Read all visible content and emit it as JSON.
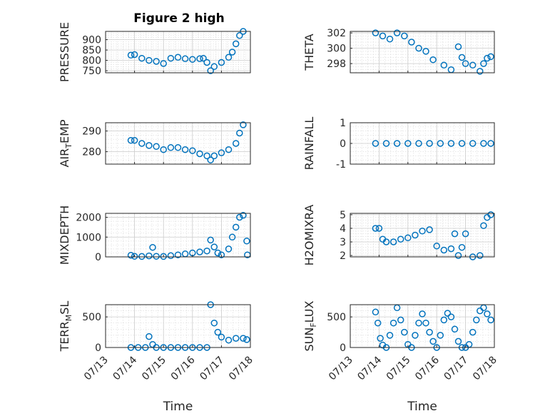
{
  "figure": {
    "title": "Figure 2 high",
    "marker_color": "#0072BD"
  },
  "chart_data": [
    {
      "type": "scatter",
      "title": "Figure 2 high",
      "ylabel": "PRESSURE",
      "ylabel_sub": "",
      "ylabel_after": "",
      "xlabel": "",
      "yticks": [
        750,
        800,
        850,
        900
      ],
      "ylim": [
        740,
        940
      ],
      "xlim": [
        "07/13",
        "07/18"
      ],
      "series": [
        {
          "x": [
            "07/13 21:00",
            "07/14 00:00",
            "07/14 06:00",
            "07/14 12:00",
            "07/14 18:00",
            "07/15 00:00",
            "07/15 06:00",
            "07/15 12:00",
            "07/15 18:00",
            "07/16 00:00",
            "07/16 06:00",
            "07/16 09:00",
            "07/16 12:00",
            "07/16 15:00",
            "07/16 18:00",
            "07/17 00:00",
            "07/17 06:00",
            "07/17 09:00",
            "07/17 12:00",
            "07/17 15:00",
            "07/17 18:00"
          ],
          "y": [
            825,
            828,
            810,
            800,
            795,
            785,
            810,
            815,
            808,
            805,
            808,
            810,
            790,
            750,
            770,
            790,
            815,
            840,
            880,
            920,
            940
          ]
        }
      ]
    },
    {
      "type": "scatter",
      "title": "",
      "ylabel": "THETA",
      "ylabel_sub": "",
      "ylabel_after": "",
      "xlabel": "",
      "yticks": [
        298,
        300,
        302
      ],
      "ylim": [
        296.8,
        302.2
      ],
      "xlim": [
        "07/13",
        "07/18"
      ],
      "series": [
        {
          "x": [
            "07/13 21:00",
            "07/14 03:00",
            "07/14 09:00",
            "07/14 15:00",
            "07/14 21:00",
            "07/15 03:00",
            "07/15 09:00",
            "07/15 15:00",
            "07/15 21:00",
            "07/16 06:00",
            "07/16 12:00",
            "07/16 18:00",
            "07/16 21:00",
            "07/17 00:00",
            "07/17 06:00",
            "07/17 12:00",
            "07/17 15:00",
            "07/17 18:00",
            "07/17 21:00"
          ],
          "y": [
            302,
            301.6,
            301.2,
            302,
            301.6,
            300.8,
            300.0,
            299.6,
            298.5,
            297.8,
            297.2,
            300.2,
            298.8,
            298.0,
            297.8,
            297.0,
            298.0,
            298.7,
            298.9
          ]
        }
      ]
    },
    {
      "type": "scatter",
      "title": "",
      "ylabel": "AIR",
      "ylabel_sub": "T",
      "ylabel_after": "EMP",
      "xlabel": "",
      "yticks": [
        280,
        290
      ],
      "ylim": [
        274,
        294
      ],
      "xlim": [
        "07/13",
        "07/18"
      ],
      "series": [
        {
          "x": [
            "07/13 21:00",
            "07/14 00:00",
            "07/14 06:00",
            "07/14 12:00",
            "07/14 18:00",
            "07/15 00:00",
            "07/15 06:00",
            "07/15 12:00",
            "07/15 18:00",
            "07/16 00:00",
            "07/16 06:00",
            "07/16 12:00",
            "07/16 15:00",
            "07/16 18:00",
            "07/17 00:00",
            "07/17 06:00",
            "07/17 12:00",
            "07/17 15:00",
            "07/17 18:00"
          ],
          "y": [
            285.5,
            285.5,
            284,
            283,
            282.5,
            281,
            282,
            282,
            281,
            280.5,
            279,
            278,
            276,
            278,
            279.5,
            281,
            284,
            289,
            293
          ]
        }
      ]
    },
    {
      "type": "scatter",
      "title": "",
      "ylabel": "RAINFALL",
      "ylabel_sub": "",
      "ylabel_after": "",
      "xlabel": "",
      "yticks": [
        -1,
        0,
        1
      ],
      "ylim": [
        -1,
        1
      ],
      "xlim": [
        "07/13",
        "07/18"
      ],
      "series": [
        {
          "x": [
            "07/13 21:00",
            "07/14 06:00",
            "07/14 15:00",
            "07/15 00:00",
            "07/15 09:00",
            "07/15 18:00",
            "07/16 03:00",
            "07/16 12:00",
            "07/16 21:00",
            "07/17 06:00",
            "07/17 15:00",
            "07/17 21:00"
          ],
          "y": [
            0,
            0,
            0,
            0,
            0,
            0,
            0,
            0,
            0,
            0,
            0,
            0
          ]
        }
      ]
    },
    {
      "type": "scatter",
      "title": "",
      "ylabel": "MIXDEPTH",
      "ylabel_sub": "",
      "ylabel_after": "",
      "xlabel": "",
      "yticks": [
        0,
        1000,
        2000
      ],
      "ylim": [
        0,
        2200
      ],
      "xlim": [
        "07/13",
        "07/18"
      ],
      "series": [
        {
          "x": [
            "07/13 21:00",
            "07/14 00:00",
            "07/14 06:00",
            "07/14 12:00",
            "07/14 15:00",
            "07/14 18:00",
            "07/15 00:00",
            "07/15 06:00",
            "07/15 12:00",
            "07/15 18:00",
            "07/16 00:00",
            "07/16 06:00",
            "07/16 12:00",
            "07/16 15:00",
            "07/16 18:00",
            "07/16 21:00",
            "07/17 00:00",
            "07/17 06:00",
            "07/17 09:00",
            "07/17 12:00",
            "07/17 15:00",
            "07/17 18:00",
            "07/17 21:00",
            "07/17 21:30"
          ],
          "y": [
            80,
            30,
            20,
            50,
            480,
            30,
            20,
            60,
            100,
            150,
            200,
            250,
            300,
            850,
            500,
            200,
            100,
            400,
            1000,
            1500,
            2000,
            2100,
            800,
            100
          ]
        }
      ]
    },
    {
      "type": "scatter",
      "title": "",
      "ylabel": "H2OMIXRA",
      "ylabel_sub": "",
      "ylabel_after": "",
      "xlabel": "",
      "yticks": [
        2,
        3,
        4,
        5
      ],
      "ylim": [
        1.9,
        5.1
      ],
      "xlim": [
        "07/13",
        "07/18"
      ],
      "series": [
        {
          "x": [
            "07/13 21:00",
            "07/14 00:00",
            "07/14 03:00",
            "07/14 06:00",
            "07/14 12:00",
            "07/14 18:00",
            "07/15 00:00",
            "07/15 06:00",
            "07/15 12:00",
            "07/15 18:00",
            "07/16 00:00",
            "07/16 06:00",
            "07/16 12:00",
            "07/16 15:00",
            "07/16 18:00",
            "07/16 21:00",
            "07/17 00:00",
            "07/17 06:00",
            "07/17 12:00",
            "07/17 15:00",
            "07/17 18:00",
            "07/17 21:00"
          ],
          "y": [
            4.0,
            4.0,
            3.2,
            3.0,
            3.0,
            3.2,
            3.3,
            3.5,
            3.8,
            3.9,
            2.7,
            2.4,
            2.5,
            3.6,
            2.0,
            2.6,
            3.6,
            1.9,
            2.0,
            4.2,
            4.8,
            5.0
          ]
        }
      ]
    },
    {
      "type": "scatter",
      "title": "",
      "ylabel": "TERR",
      "ylabel_sub": "M",
      "ylabel_after": "SL",
      "xlabel": "Time",
      "yticks": [
        0,
        500
      ],
      "ylim": [
        0,
        700
      ],
      "xlim": [
        "07/13",
        "07/18"
      ],
      "xticks": [
        "07/13",
        "07/14",
        "07/15",
        "07/16",
        "07/17",
        "07/18"
      ],
      "series": [
        {
          "x": [
            "07/13 21:00",
            "07/14 03:00",
            "07/14 09:00",
            "07/14 12:00",
            "07/14 15:00",
            "07/14 18:00",
            "07/15 00:00",
            "07/15 06:00",
            "07/15 12:00",
            "07/15 18:00",
            "07/16 00:00",
            "07/16 06:00",
            "07/16 12:00",
            "07/16 15:00",
            "07/16 18:00",
            "07/16 21:00",
            "07/17 00:00",
            "07/17 06:00",
            "07/17 12:00",
            "07/17 18:00",
            "07/17 21:00"
          ],
          "y": [
            0,
            0,
            0,
            180,
            50,
            0,
            0,
            0,
            0,
            0,
            0,
            0,
            0,
            700,
            400,
            250,
            170,
            120,
            150,
            150,
            130
          ]
        }
      ]
    },
    {
      "type": "scatter",
      "title": "",
      "ylabel": "SUN",
      "ylabel_sub": "F",
      "ylabel_after": "LUX",
      "xlabel": "Time",
      "yticks": [
        0,
        500
      ],
      "ylim": [
        0,
        700
      ],
      "xlim": [
        "07/13",
        "07/18"
      ],
      "xticks": [
        "07/13",
        "07/14",
        "07/15",
        "07/16",
        "07/17",
        "07/18"
      ],
      "series": [
        {
          "x": [
            "07/13 21:00",
            "07/13 23:00",
            "07/14 01:00",
            "07/14 03:00",
            "07/14 06:00",
            "07/14 09:00",
            "07/14 12:00",
            "07/14 15:00",
            "07/14 18:00",
            "07/14 21:00",
            "07/15 00:00",
            "07/15 03:00",
            "07/15 06:00",
            "07/15 09:00",
            "07/15 12:00",
            "07/15 15:00",
            "07/15 18:00",
            "07/15 21:00",
            "07/16 00:00",
            "07/16 03:00",
            "07/16 06:00",
            "07/16 09:00",
            "07/16 12:00",
            "07/16 15:00",
            "07/16 18:00",
            "07/16 21:00",
            "07/17 00:00",
            "07/17 03:00",
            "07/17 06:00",
            "07/17 09:00",
            "07/17 12:00",
            "07/17 15:00",
            "07/17 18:00",
            "07/17 21:00"
          ],
          "y": [
            580,
            400,
            150,
            40,
            0,
            200,
            400,
            650,
            450,
            250,
            50,
            0,
            200,
            400,
            550,
            400,
            250,
            100,
            0,
            200,
            450,
            560,
            500,
            300,
            100,
            0,
            0,
            50,
            250,
            450,
            600,
            650,
            550,
            450
          ]
        }
      ]
    }
  ]
}
